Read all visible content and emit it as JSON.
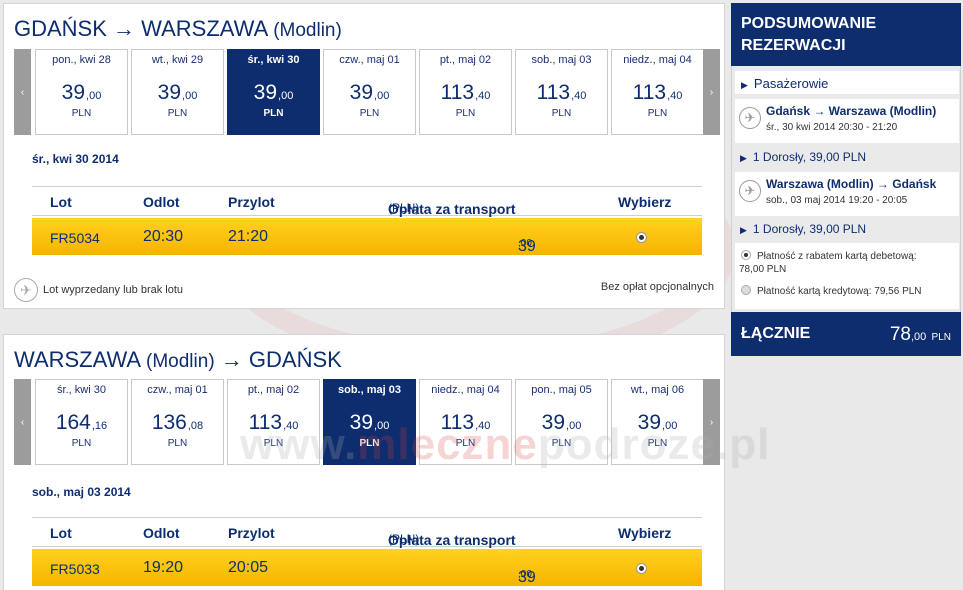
{
  "outbound": {
    "origin": "GDAŃSK",
    "arrow": "→",
    "destination": "WARSZAWA",
    "destination_sub": "(Modlin)",
    "days": [
      {
        "name": "pon., kwi 28",
        "price": "39",
        "cents": ",00",
        "currency": "PLN"
      },
      {
        "name": "wt., kwi 29",
        "price": "39",
        "cents": ",00",
        "currency": "PLN"
      },
      {
        "name": "śr., kwi 30",
        "price": "39",
        "cents": ",00",
        "currency": "PLN",
        "selected": true
      },
      {
        "name": "czw., maj 01",
        "price": "39",
        "cents": ",00",
        "currency": "PLN"
      },
      {
        "name": "pt., maj 02",
        "price": "113",
        "cents": ",40",
        "currency": "PLN"
      },
      {
        "name": "sob., maj 03",
        "price": "113",
        "cents": ",40",
        "currency": "PLN"
      },
      {
        "name": "niedz., maj 04",
        "price": "113",
        "cents": ",40",
        "currency": "PLN"
      }
    ],
    "selected_date": "śr., kwi 30 2014",
    "flight": {
      "code": "FR5034",
      "dep": "20:30",
      "arr": "21:20",
      "fare": "39",
      "fare_cents": ",00"
    }
  },
  "inbound": {
    "origin": "WARSZAWA",
    "origin_sub": "(Modlin)",
    "arrow": "→",
    "destination": "GDAŃSK",
    "days": [
      {
        "name": "śr., kwi 30",
        "price": "164",
        "cents": ",16",
        "currency": "PLN"
      },
      {
        "name": "czw., maj 01",
        "price": "136",
        "cents": ",08",
        "currency": "PLN"
      },
      {
        "name": "pt., maj 02",
        "price": "113",
        "cents": ",40",
        "currency": "PLN"
      },
      {
        "name": "sob., maj 03",
        "price": "39",
        "cents": ",00",
        "currency": "PLN",
        "selected": true
      },
      {
        "name": "niedz., maj 04",
        "price": "113",
        "cents": ",40",
        "currency": "PLN"
      },
      {
        "name": "pon., maj 05",
        "price": "39",
        "cents": ",00",
        "currency": "PLN"
      },
      {
        "name": "wt., maj 06",
        "price": "39",
        "cents": ",00",
        "currency": "PLN"
      }
    ],
    "selected_date": "sob., maj 03 2014",
    "flight": {
      "code": "FR5033",
      "dep": "19:20",
      "arr": "20:05",
      "fare": "39",
      "fare_cents": ",00"
    }
  },
  "columns": {
    "lot": "Lot",
    "odlot": "Odlot",
    "przylot": "Przylot",
    "oplata": "Opłata za transport",
    "oplata_unit": "(PLN)",
    "wybierz": "Wybierz"
  },
  "legend": {
    "sold_out": "Lot wyprzedany lub brak lotu",
    "no_fees": "Bez opłat opcjonalnych"
  },
  "carousel": {
    "prev": "‹",
    "next": "›"
  },
  "sidebar": {
    "title_line1": "PODSUMOWANIE",
    "title_line2": "REZERWACJI",
    "passengers": "Pasażerowie",
    "seg1": {
      "route": "Gdańsk → Warszawa (Modlin)",
      "time": "śr., 30 kwi 2014 20:30 - 21:20",
      "adult": "1 Dorosły, 39,00 PLN"
    },
    "seg2": {
      "route": "Warszawa (Modlin) → Gdańsk",
      "time": "sob., 03 maj 2014 19:20 - 20:05",
      "adult": "1 Dorosły, 39,00 PLN"
    },
    "pay_debit_l1": "Płatność z rabatem kartą debetową:",
    "pay_debit_l2": "78,00 PLN",
    "pay_credit": "Płatność kartą kredytową: 79,56 PLN",
    "total_label": "ŁĄCZNIE",
    "total_amount": "78",
    "total_cents": ",00",
    "total_currency": "PLN"
  },
  "watermark": {
    "part1": "www.",
    "part2": "mleczne",
    "part3": "podroze.pl"
  },
  "colors": {
    "navy": "#0d2d6e",
    "yellow": "#ffd21e"
  }
}
